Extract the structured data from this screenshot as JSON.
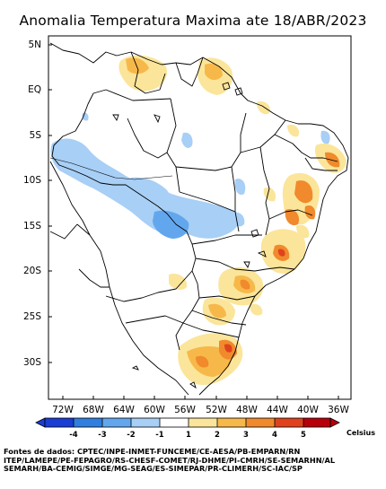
{
  "title": "Anomalia Temperatura Maxima ate 18/ABR/2023",
  "lat_labels": [
    "5N",
    "EQ",
    "5S",
    "10S",
    "15S",
    "20S",
    "25S",
    "30S"
  ],
  "lon_labels": [
    "72W",
    "68W",
    "64W",
    "60W",
    "56W",
    "52W",
    "48W",
    "44W",
    "40W",
    "36W"
  ],
  "colorbar": {
    "unit": "Celsius",
    "ticks": [
      "-4",
      "-3",
      "-2",
      "-1",
      "1",
      "2",
      "3",
      "4",
      "5"
    ],
    "colors": [
      "#1a3dd6",
      "#2f7fe0",
      "#62a7ee",
      "#a8cff5",
      "#ffffff",
      "#fbe59a",
      "#f7b84a",
      "#f08a2c",
      "#e0421e",
      "#b8000b"
    ]
  },
  "sources": [
    "Fontes de dados: CPTEC/INPE-INMET-FUNCEME/CE-AESA/PB-EMPARN/RN",
    "ITEP/LAMEPE/PE-FEPAGRO/RS-CHESF-COMET/RJ-DHME/PI-CMRH/SE-SEMARHN/AL",
    "SEMARH/BA-CEMIG/SIMGE/MG-SEAG/ES-SIMEPAR/PR-CLIMERH/SC-IAC/SP"
  ]
}
